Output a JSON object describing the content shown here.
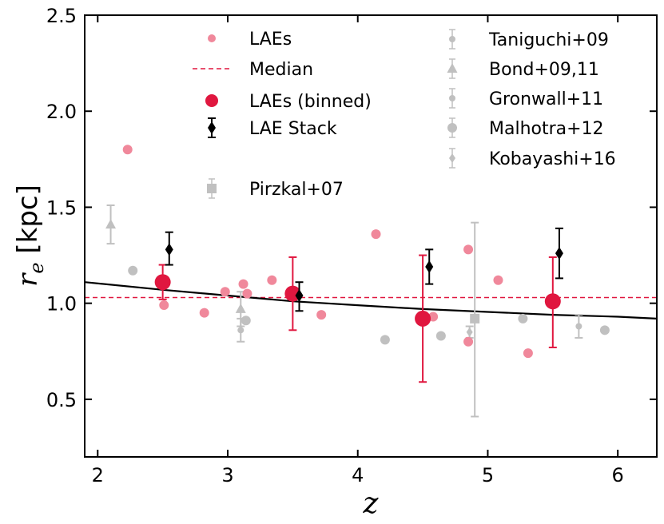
{
  "chart_data": {
    "type": "scatter",
    "title": "",
    "xlabel": "z",
    "ylabel_main": "r",
    "ylabel_sub": "e",
    "ylabel_unit": "[kpc]",
    "xlim": [
      1.9,
      6.3
    ],
    "ylim": [
      0.2,
      2.5
    ],
    "xticks": [
      2,
      3,
      4,
      5,
      6
    ],
    "yticks": [
      0.5,
      1.0,
      1.5,
      2.0,
      2.5
    ],
    "xtick_labels": [
      "2",
      "3",
      "4",
      "5",
      "6"
    ],
    "ytick_labels": [
      "0.5",
      "1.0",
      "1.5",
      "2.0",
      "2.5"
    ],
    "colors": {
      "lae": "#f0889b",
      "binned": "#e0173f",
      "median": "#e0173f",
      "stack": "#000000",
      "literature": "#c0c0c0",
      "fit": "#000000"
    },
    "median": 1.03,
    "fit_curve": [
      {
        "z": 1.9,
        "r": 1.11
      },
      {
        "z": 2.5,
        "r": 1.07
      },
      {
        "z": 3.0,
        "r": 1.04
      },
      {
        "z": 3.5,
        "r": 1.01
      },
      {
        "z": 4.0,
        "r": 0.99
      },
      {
        "z": 4.5,
        "r": 0.97
      },
      {
        "z": 5.0,
        "r": 0.955
      },
      {
        "z": 5.5,
        "r": 0.94
      },
      {
        "z": 6.0,
        "r": 0.93
      },
      {
        "z": 6.3,
        "r": 0.92
      }
    ],
    "laes": [
      {
        "z": 2.23,
        "r": 1.8
      },
      {
        "z": 2.51,
        "r": 0.99
      },
      {
        "z": 2.82,
        "r": 0.95
      },
      {
        "z": 2.98,
        "r": 1.06
      },
      {
        "z": 3.12,
        "r": 1.1
      },
      {
        "z": 3.15,
        "r": 1.05
      },
      {
        "z": 3.34,
        "r": 1.12
      },
      {
        "z": 3.72,
        "r": 0.94
      },
      {
        "z": 4.14,
        "r": 1.36
      },
      {
        "z": 4.58,
        "r": 0.93
      },
      {
        "z": 4.85,
        "r": 1.28
      },
      {
        "z": 4.85,
        "r": 0.8
      },
      {
        "z": 5.08,
        "r": 1.12
      },
      {
        "z": 5.31,
        "r": 0.74
      }
    ],
    "laes_binned": [
      {
        "z": 2.5,
        "r": 1.11,
        "lo": 1.02,
        "hi": 1.2
      },
      {
        "z": 3.5,
        "r": 1.05,
        "lo": 0.86,
        "hi": 1.24
      },
      {
        "z": 4.5,
        "r": 0.92,
        "lo": 0.59,
        "hi": 1.25
      },
      {
        "z": 5.5,
        "r": 1.01,
        "lo": 0.77,
        "hi": 1.24
      }
    ],
    "lae_stack": [
      {
        "z": 2.55,
        "r": 1.28,
        "lo": 1.2,
        "hi": 1.37
      },
      {
        "z": 3.55,
        "r": 1.04,
        "lo": 0.96,
        "hi": 1.11
      },
      {
        "z": 4.55,
        "r": 1.19,
        "lo": 1.1,
        "hi": 1.28
      },
      {
        "z": 5.55,
        "r": 1.26,
        "lo": 1.13,
        "hi": 1.39
      }
    ],
    "literature": [
      {
        "name": "Pirzkal+07",
        "marker": "square",
        "points": [
          {
            "z": 4.9,
            "r": 0.92,
            "lo": 0.41,
            "hi": 1.42
          }
        ]
      },
      {
        "name": "Taniguchi+09",
        "marker": "circle-small",
        "points": [
          {
            "z": 5.7,
            "r": 0.88,
            "lo": 0.82,
            "hi": 0.94
          }
        ]
      },
      {
        "name": "Bond+09,11",
        "marker": "triangle",
        "points": [
          {
            "z": 2.1,
            "r": 1.41,
            "lo": 1.31,
            "hi": 1.51
          },
          {
            "z": 3.1,
            "r": 0.97,
            "lo": 0.88,
            "hi": 1.06
          }
        ]
      },
      {
        "name": "Gronwall+11",
        "marker": "circle-small",
        "points": [
          {
            "z": 3.1,
            "r": 0.86,
            "lo": 0.8,
            "hi": 0.92
          }
        ]
      },
      {
        "name": "Malhotra+12",
        "marker": "circle",
        "points": [
          {
            "z": 2.27,
            "r": 1.17
          },
          {
            "z": 3.14,
            "r": 0.91
          },
          {
            "z": 4.21,
            "r": 0.81
          },
          {
            "z": 4.64,
            "r": 0.83
          },
          {
            "z": 5.27,
            "r": 0.92
          },
          {
            "z": 5.9,
            "r": 0.86
          }
        ]
      },
      {
        "name": "Kobayashi+16",
        "marker": "diamond",
        "points": [
          {
            "z": 4.86,
            "r": 0.85,
            "lo": 0.82,
            "hi": 0.88
          }
        ]
      }
    ],
    "legend_left": [
      {
        "label": "LAEs",
        "kind": "lae"
      },
      {
        "label": "Median",
        "kind": "median"
      },
      {
        "label": "LAEs (binned)",
        "kind": "binned"
      },
      {
        "label": "LAE Stack",
        "kind": "stack"
      },
      {
        "label": "Pirzkal+07",
        "kind": "square"
      }
    ],
    "legend_right": [
      {
        "label": "Taniguchi+09",
        "kind": "circle-small"
      },
      {
        "label": "Bond+09,11",
        "kind": "triangle"
      },
      {
        "label": "Gronwall+11",
        "kind": "circle-small"
      },
      {
        "label": "Malhotra+12",
        "kind": "circle"
      },
      {
        "label": "Kobayashi+16",
        "kind": "diamond"
      }
    ],
    "legend_placement": "top"
  }
}
